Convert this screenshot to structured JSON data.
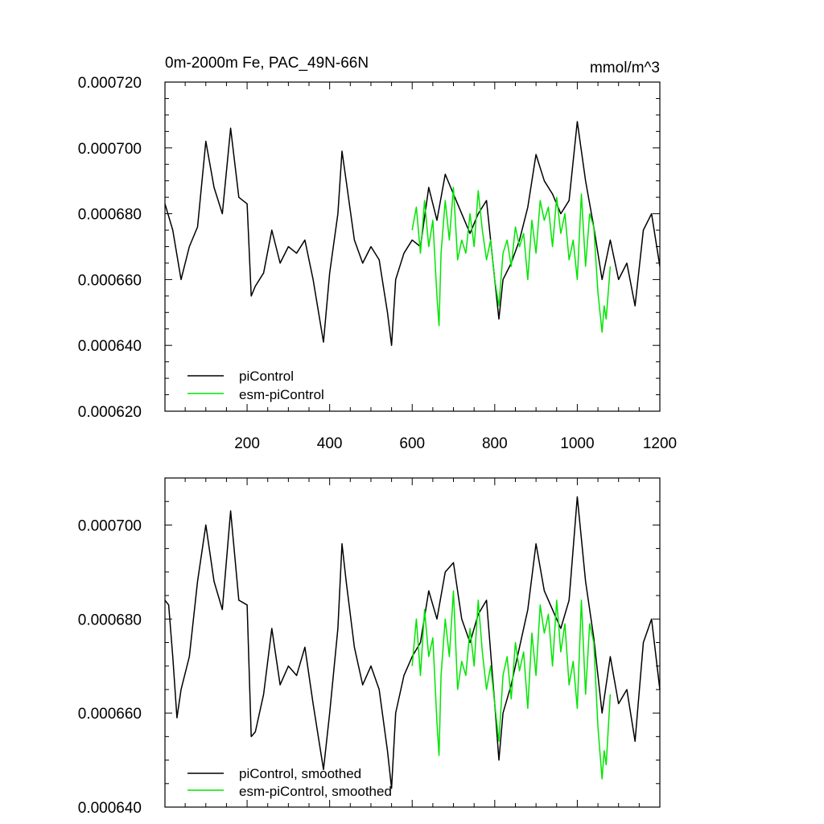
{
  "chart_data": [
    {
      "type": "line",
      "title": "0m-2000m Fe, PAC_49N-66N",
      "units": "mmol/m^3",
      "xlim": [
        1,
        1200
      ],
      "ylim": [
        0.00062,
        0.00072
      ],
      "x_ticks": [
        200,
        400,
        600,
        800,
        1000,
        1200
      ],
      "y_ticks": [
        "0.000620",
        "0.000640",
        "0.000660",
        "0.000680",
        "0.000700",
        "0.000720"
      ],
      "series": [
        {
          "name": "piControl",
          "color": "#000000",
          "x": [
            1,
            20,
            40,
            60,
            80,
            100,
            120,
            140,
            160,
            180,
            200,
            210,
            220,
            240,
            260,
            280,
            300,
            320,
            340,
            360,
            385,
            400,
            420,
            430,
            440,
            460,
            480,
            500,
            520,
            540,
            550,
            560,
            580,
            600,
            620,
            640,
            660,
            680,
            700,
            720,
            740,
            760,
            780,
            800,
            810,
            820,
            840,
            860,
            880,
            900,
            920,
            940,
            960,
            980,
            1000,
            1020,
            1040,
            1060,
            1080,
            1100,
            1120,
            1140,
            1160,
            1180,
            1200
          ],
          "values": [
            0.000683,
            0.000675,
            0.00066,
            0.00067,
            0.000676,
            0.000702,
            0.000688,
            0.00068,
            0.000706,
            0.000685,
            0.000683,
            0.000655,
            0.000658,
            0.000662,
            0.000675,
            0.000665,
            0.00067,
            0.000668,
            0.000672,
            0.00066,
            0.000641,
            0.000662,
            0.00068,
            0.000699,
            0.00069,
            0.000672,
            0.000665,
            0.00067,
            0.000666,
            0.00065,
            0.00064,
            0.00066,
            0.000668,
            0.000672,
            0.00067,
            0.000688,
            0.000678,
            0.000692,
            0.000686,
            0.00068,
            0.000674,
            0.00068,
            0.000684,
            0.00066,
            0.000648,
            0.00066,
            0.000665,
            0.000672,
            0.000682,
            0.000698,
            0.00069,
            0.000686,
            0.00068,
            0.000684,
            0.000708,
            0.00069,
            0.000676,
            0.00066,
            0.000672,
            0.00066,
            0.000665,
            0.000652,
            0.000675,
            0.00068,
            0.000664
          ]
        },
        {
          "name": "esm-piControl",
          "color": "#00e600",
          "x": [
            600,
            610,
            620,
            630,
            640,
            650,
            660,
            665,
            670,
            680,
            690,
            700,
            710,
            720,
            730,
            740,
            750,
            760,
            770,
            780,
            790,
            800,
            810,
            820,
            830,
            840,
            850,
            860,
            870,
            880,
            890,
            900,
            910,
            920,
            930,
            940,
            950,
            960,
            970,
            980,
            990,
            1000,
            1010,
            1020,
            1030,
            1040,
            1050,
            1060,
            1065,
            1070,
            1080
          ],
          "values": [
            0.000675,
            0.000682,
            0.000668,
            0.000684,
            0.00067,
            0.000678,
            0.000655,
            0.000646,
            0.000668,
            0.000684,
            0.000672,
            0.000688,
            0.000666,
            0.000672,
            0.000668,
            0.00068,
            0.00067,
            0.000687,
            0.000675,
            0.000666,
            0.000672,
            0.00066,
            0.000652,
            0.000668,
            0.000672,
            0.000664,
            0.000676,
            0.00067,
            0.000674,
            0.00066,
            0.000678,
            0.000668,
            0.000684,
            0.000678,
            0.000682,
            0.00067,
            0.000685,
            0.000674,
            0.00068,
            0.000666,
            0.000672,
            0.00066,
            0.000686,
            0.000664,
            0.00068,
            0.000676,
            0.000656,
            0.000644,
            0.000652,
            0.000648,
            0.000664
          ]
        }
      ],
      "legend": [
        "piControl",
        "esm-piControl"
      ],
      "legend_position": "bottom-left"
    },
    {
      "type": "line",
      "xlim": [
        1,
        1200
      ],
      "ylim": [
        0.00064,
        0.00071
      ],
      "y_ticks": [
        "0.000640",
        "0.000660",
        "0.000680",
        "0.000700"
      ],
      "series": [
        {
          "name": "piControl, smoothed",
          "color": "#000000",
          "x": [
            1,
            10,
            20,
            30,
            40,
            60,
            80,
            100,
            120,
            140,
            160,
            180,
            200,
            210,
            220,
            240,
            260,
            280,
            300,
            320,
            340,
            360,
            385,
            400,
            420,
            430,
            440,
            460,
            480,
            500,
            520,
            540,
            550,
            560,
            580,
            600,
            620,
            640,
            660,
            680,
            700,
            720,
            740,
            760,
            780,
            800,
            810,
            820,
            840,
            860,
            880,
            900,
            920,
            940,
            960,
            980,
            1000,
            1020,
            1040,
            1060,
            1080,
            1100,
            1120,
            1140,
            1160,
            1180,
            1200
          ],
          "values": [
            0.000684,
            0.000683,
            0.000672,
            0.000659,
            0.000665,
            0.000672,
            0.000688,
            0.0007,
            0.000688,
            0.000682,
            0.000703,
            0.000684,
            0.000683,
            0.000655,
            0.000656,
            0.000664,
            0.000678,
            0.000666,
            0.00067,
            0.000668,
            0.000674,
            0.000662,
            0.000648,
            0.00066,
            0.000678,
            0.000696,
            0.000688,
            0.000674,
            0.000666,
            0.00067,
            0.000665,
            0.000652,
            0.000644,
            0.00066,
            0.000668,
            0.000672,
            0.000675,
            0.000686,
            0.00068,
            0.00069,
            0.000692,
            0.00068,
            0.000675,
            0.000681,
            0.000684,
            0.000662,
            0.00065,
            0.00066,
            0.000666,
            0.000674,
            0.000682,
            0.000696,
            0.000686,
            0.000682,
            0.000678,
            0.000684,
            0.000706,
            0.000688,
            0.000676,
            0.00066,
            0.000672,
            0.000662,
            0.000665,
            0.000654,
            0.000675,
            0.00068,
            0.000665
          ]
        },
        {
          "name": "esm-piControl, smoothed",
          "color": "#00e600",
          "x": [
            600,
            610,
            620,
            630,
            640,
            650,
            660,
            665,
            670,
            680,
            690,
            700,
            710,
            720,
            730,
            740,
            750,
            760,
            770,
            780,
            790,
            800,
            810,
            820,
            830,
            840,
            850,
            860,
            870,
            880,
            890,
            900,
            910,
            920,
            930,
            940,
            950,
            960,
            970,
            980,
            990,
            1000,
            1010,
            1020,
            1030,
            1040,
            1050,
            1060,
            1065,
            1070,
            1080
          ],
          "values": [
            0.00067,
            0.00068,
            0.000668,
            0.000682,
            0.000672,
            0.000676,
            0.000658,
            0.000651,
            0.000668,
            0.00068,
            0.000672,
            0.000686,
            0.000665,
            0.000671,
            0.000668,
            0.000678,
            0.00067,
            0.000684,
            0.000673,
            0.000665,
            0.00067,
            0.000662,
            0.000654,
            0.000668,
            0.000672,
            0.000663,
            0.000675,
            0.000669,
            0.000673,
            0.000661,
            0.000677,
            0.000668,
            0.000683,
            0.000677,
            0.000681,
            0.00067,
            0.000684,
            0.000673,
            0.000679,
            0.000666,
            0.000671,
            0.000661,
            0.000684,
            0.000664,
            0.000679,
            0.000675,
            0.000657,
            0.000646,
            0.000652,
            0.000649,
            0.000664
          ]
        }
      ],
      "legend": [
        "piControl, smoothed",
        "esm-piControl, smoothed"
      ],
      "legend_position": "bottom-left"
    }
  ]
}
